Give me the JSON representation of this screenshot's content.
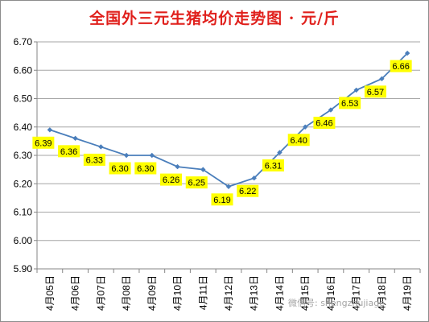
{
  "chart_data": {
    "type": "line",
    "title": "全国外三元生猪均价走势图 · 元/斤",
    "xlabel": "",
    "ylabel": "",
    "categories": [
      "4月05日",
      "4月06日",
      "4月07日",
      "4月08日",
      "4月09日",
      "4月10日",
      "4月11日",
      "4月12日",
      "4月13日",
      "4月14日",
      "4月15日",
      "4月16日",
      "4月17日",
      "4月18日",
      "4月19日"
    ],
    "series": [
      {
        "values": [
          6.39,
          6.36,
          6.33,
          6.3,
          6.3,
          6.26,
          6.25,
          6.19,
          6.22,
          6.31,
          6.4,
          6.46,
          6.53,
          6.57,
          6.66
        ]
      }
    ],
    "data_labels": [
      "6.39",
      "6.36",
      "6.33",
      "6.30",
      "6.30",
      "6.26",
      "6.25",
      "6.19",
      "6.22",
      "6.31",
      "6.40",
      "6.46",
      "6.53",
      "6.57",
      "6.66"
    ],
    "ylim": [
      5.9,
      6.7
    ],
    "yticks": [
      "5.90",
      "6.00",
      "6.10",
      "6.20",
      "6.30",
      "6.40",
      "6.50",
      "6.60",
      "6.70"
    ],
    "grid": true,
    "legend": "none",
    "colors": {
      "line": "#4a7ebb",
      "label_bg": "#ffff00",
      "title": "#e0201c",
      "grid": "#a6a6a6"
    }
  },
  "watermark": "微信号: shengzhujiage"
}
